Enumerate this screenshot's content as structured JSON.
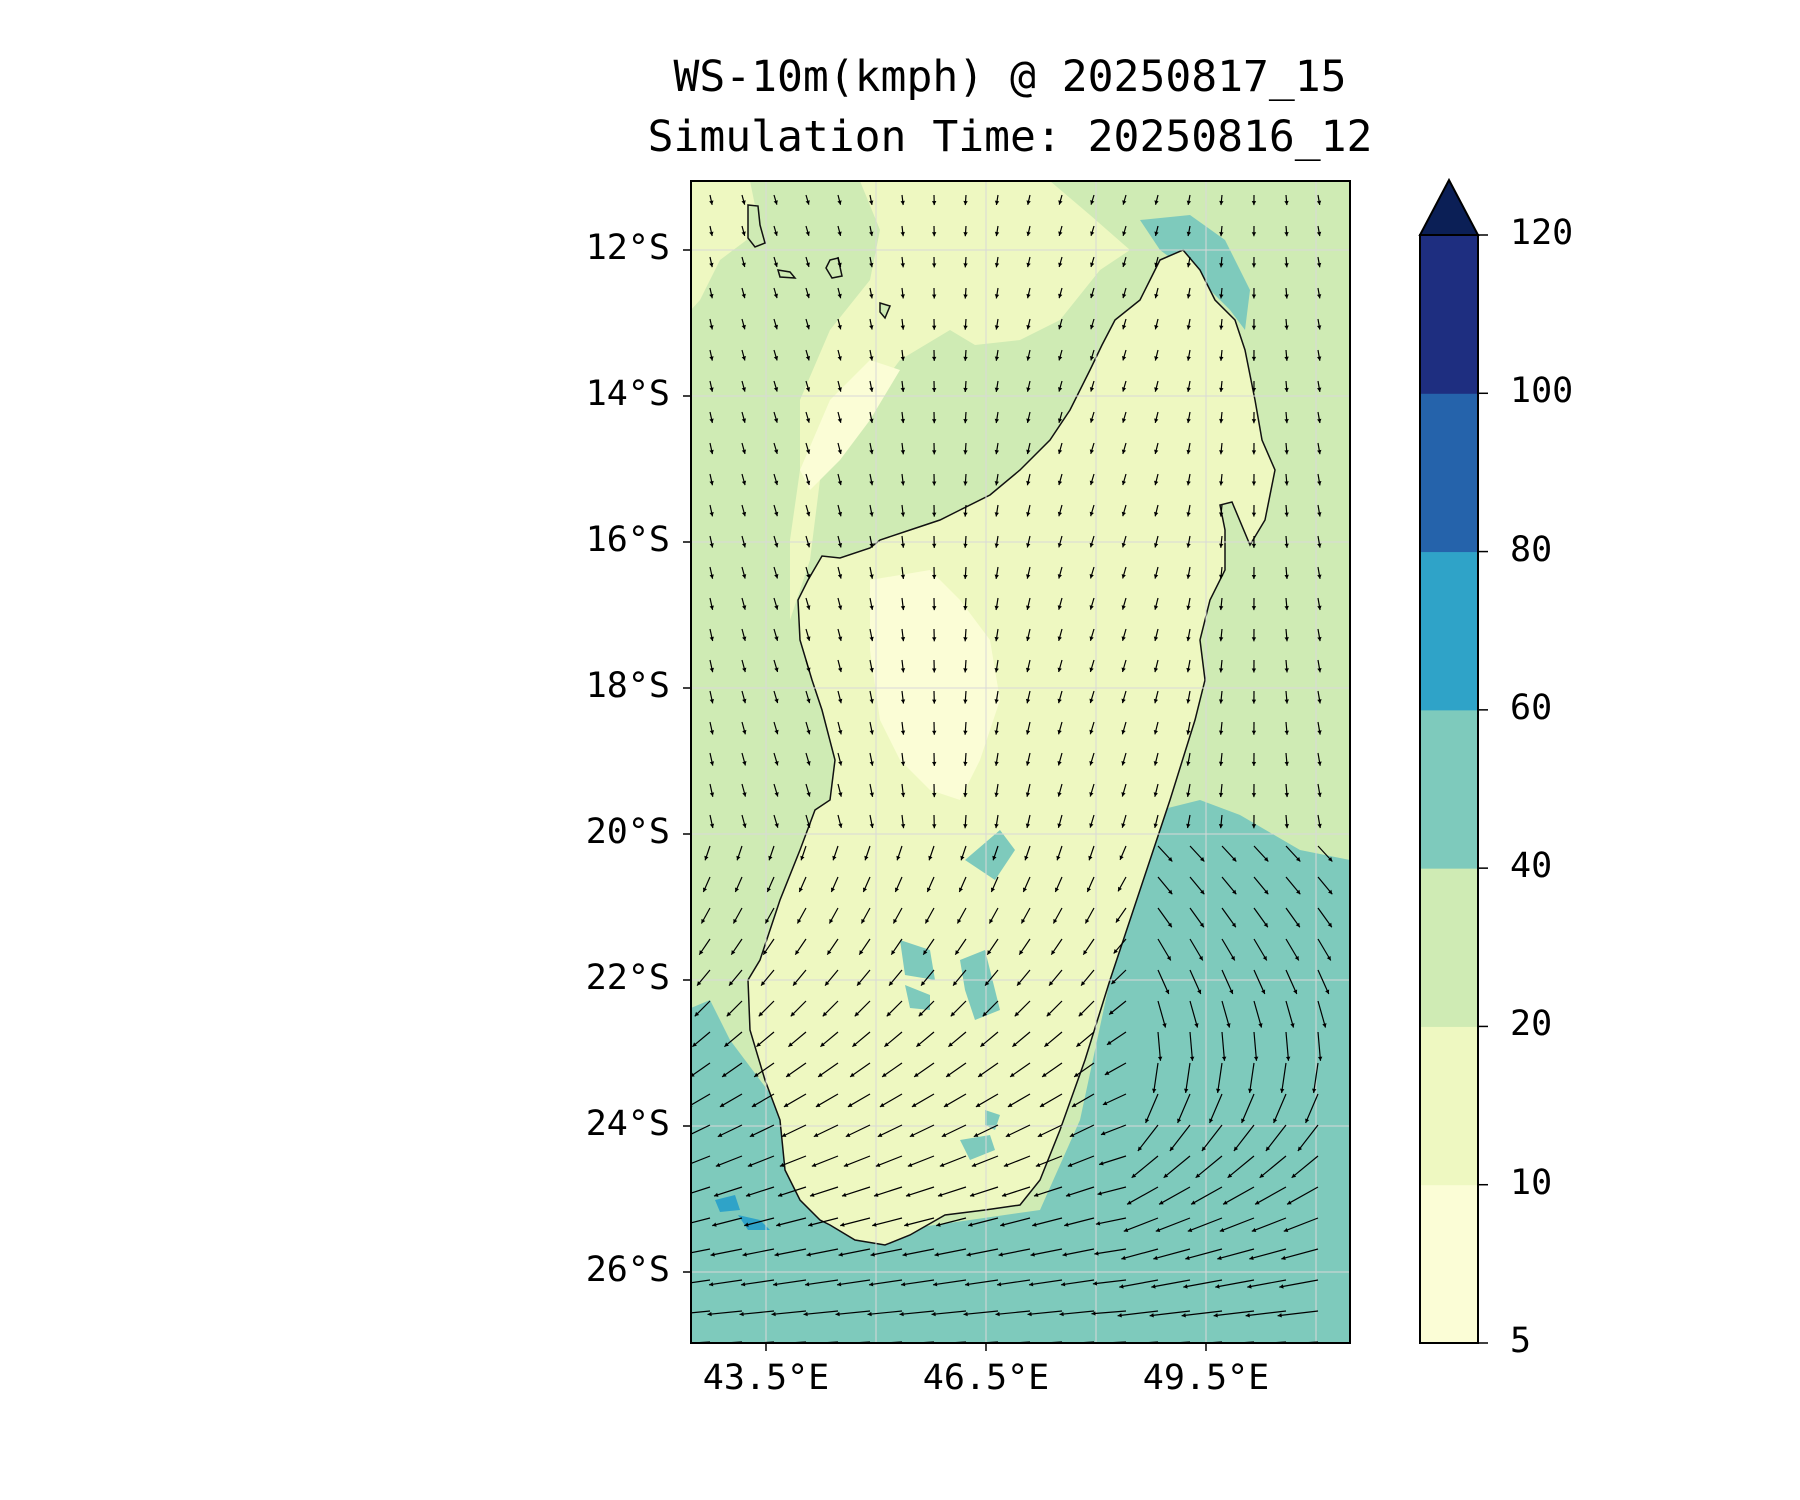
{
  "title": {
    "line1": "WS-10m(kmph) @ 20250817_15",
    "line2": "Simulation Time: 20250816_12"
  },
  "map": {
    "lat_labels": [
      "12°S",
      "14°S",
      "16°S",
      "18°S",
      "20°S",
      "22°S",
      "24°S",
      "26°S"
    ],
    "lon_labels": [
      "43.5°E",
      "46.5°E",
      "49.5°E"
    ],
    "extent": {
      "lon_min": 42.5,
      "lon_max": 51.5,
      "lat_min": -27.0,
      "lat_max": -11.0
    }
  },
  "colorbar": {
    "levels": [
      "5",
      "10",
      "20",
      "40",
      "60",
      "80",
      "100",
      "120"
    ],
    "colors": [
      "#fbfdd6",
      "#eef8c1",
      "#cfebb4",
      "#7ecabc",
      "#2fa3c8",
      "#2563ab",
      "#1e2e80",
      "#0b1f56"
    ],
    "extend": "max"
  }
}
